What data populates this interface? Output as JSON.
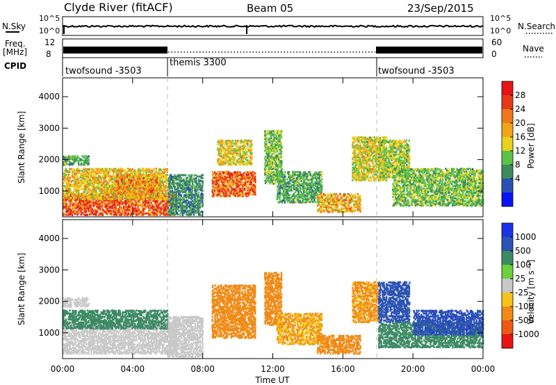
{
  "header": {
    "station": "Clyde River (fitACF)",
    "beam": "Beam 05",
    "date": "23/Sep/2015"
  },
  "noise_panel": {
    "left_label": "N.Sky",
    "left_ticks": [
      "10^5",
      "10^0"
    ],
    "right_ticks": [
      "10^5",
      "10^0"
    ],
    "right_label": "N.Search"
  },
  "freq_panel": {
    "left_label_line1": "Freq.",
    "left_label_line2": "[MHz]",
    "left_ticks": [
      "12",
      "8"
    ],
    "right_ticks": [
      "60",
      "0"
    ],
    "right_label": "Nave",
    "cpid_label": "CPID"
  },
  "cpid_segments": [
    {
      "name": "twofsound -3503",
      "start_hour": 0,
      "end_hour": 6
    },
    {
      "name": "themis 3300",
      "start_hour": 6,
      "end_hour": 18
    },
    {
      "name": "twofsound -3503",
      "start_hour": 18,
      "end_hour": 24
    }
  ],
  "colors": {
    "power_scale": [
      "#0a14f0",
      "#2b4fb5",
      "#3e8a5e",
      "#5cc24a",
      "#e8d21c",
      "#f0a418",
      "#f07818",
      "#e43a1a",
      "#e61414"
    ],
    "velocity_scale": [
      "#e61414",
      "#ee5a14",
      "#f08a14",
      "#f5c418",
      "#c8c8c8",
      "#6ccf3c",
      "#3c8a64",
      "#2c52b4",
      "#1c32e6"
    ]
  },
  "chart_data": [
    {
      "type": "heatmap",
      "panel": "power",
      "ylabel": "Slant Range [km]",
      "yticks": [
        "1000",
        "2000",
        "3000",
        "4000"
      ],
      "ylim": [
        180,
        4600
      ],
      "xlim_hours": [
        0,
        24
      ],
      "colorbar_label": "Power [dB]",
      "colorbar_ticks": [
        "4",
        "8",
        "12",
        "16",
        "20",
        "24",
        "28"
      ],
      "colorbar_range": [
        0,
        32
      ],
      "value_unit": "dB",
      "regions": [
        {
          "t0": 0.0,
          "t1": 6.5,
          "r0": 200,
          "r1": 900,
          "value": 29
        },
        {
          "t0": 0.0,
          "t1": 6.0,
          "r0": 700,
          "r1": 1700,
          "value": 20
        },
        {
          "t0": 0.0,
          "t1": 1.5,
          "r0": 1800,
          "r1": 2100,
          "value": 12
        },
        {
          "t0": 3.0,
          "t1": 5.5,
          "r0": 900,
          "r1": 1500,
          "value": 24
        },
        {
          "t0": 6.0,
          "t1": 8.0,
          "r0": 200,
          "r1": 1500,
          "value": 10
        },
        {
          "t0": 8.5,
          "t1": 11.0,
          "r0": 800,
          "r1": 1600,
          "value": 27
        },
        {
          "t0": 8.8,
          "t1": 10.8,
          "r0": 1800,
          "r1": 2600,
          "value": 19
        },
        {
          "t0": 11.5,
          "t1": 12.5,
          "r0": 1200,
          "r1": 2900,
          "value": 14
        },
        {
          "t0": 12.2,
          "t1": 14.8,
          "r0": 600,
          "r1": 1600,
          "value": 12
        },
        {
          "t0": 14.5,
          "t1": 17.0,
          "r0": 300,
          "r1": 900,
          "value": 22
        },
        {
          "t0": 16.5,
          "t1": 18.5,
          "r0": 1300,
          "r1": 2700,
          "value": 18
        },
        {
          "t0": 18.0,
          "t1": 19.8,
          "r0": 1400,
          "r1": 2600,
          "value": 16
        },
        {
          "t0": 18.8,
          "t1": 24.0,
          "r0": 500,
          "r1": 1700,
          "value": 14
        }
      ]
    },
    {
      "type": "heatmap",
      "panel": "velocity",
      "ylabel": "Slant Range [km]",
      "yticks": [
        "1000",
        "2000",
        "3000",
        "4000"
      ],
      "ylim": [
        180,
        4600
      ],
      "xlim_hours": [
        0,
        24
      ],
      "xticks": [
        "00:00",
        "04:00",
        "08:00",
        "12:00",
        "16:00",
        "20:00",
        "00:00"
      ],
      "xlabel": "Time UT",
      "colorbar_label": "Velocity [m s⁻¹]",
      "colorbar_ticks": [
        "1000",
        "500",
        "100",
        "25",
        "-25",
        "-100",
        "-500",
        "-1000"
      ],
      "value_unit": "m/s",
      "regions": [
        {
          "t0": 0.0,
          "t1": 6.5,
          "r0": 300,
          "r1": 1300,
          "value": 10
        },
        {
          "t0": 0.0,
          "t1": 1.5,
          "r0": 1800,
          "r1": 2100,
          "value": 0
        },
        {
          "t0": 0.0,
          "t1": 6.0,
          "r0": 1100,
          "r1": 1700,
          "value": 150
        },
        {
          "t0": 6.0,
          "t1": 8.0,
          "r0": 200,
          "r1": 1500,
          "value": 0
        },
        {
          "t0": 8.5,
          "t1": 11.0,
          "r0": 800,
          "r1": 2500,
          "value": -200
        },
        {
          "t0": 11.5,
          "t1": 12.5,
          "r0": 1200,
          "r1": 2900,
          "value": -150
        },
        {
          "t0": 12.2,
          "t1": 14.8,
          "r0": 600,
          "r1": 1600,
          "value": -100
        },
        {
          "t0": 14.5,
          "t1": 17.0,
          "r0": 300,
          "r1": 900,
          "value": -180
        },
        {
          "t0": 16.5,
          "t1": 18.0,
          "r0": 1300,
          "r1": 2600,
          "value": -120
        },
        {
          "t0": 18.0,
          "t1": 19.8,
          "r0": 1300,
          "r1": 2600,
          "value": 700
        },
        {
          "t0": 18.0,
          "t1": 24.0,
          "r0": 500,
          "r1": 1300,
          "value": 200
        },
        {
          "t0": 20.0,
          "t1": 24.0,
          "r0": 900,
          "r1": 1700,
          "value": 800
        }
      ]
    }
  ]
}
